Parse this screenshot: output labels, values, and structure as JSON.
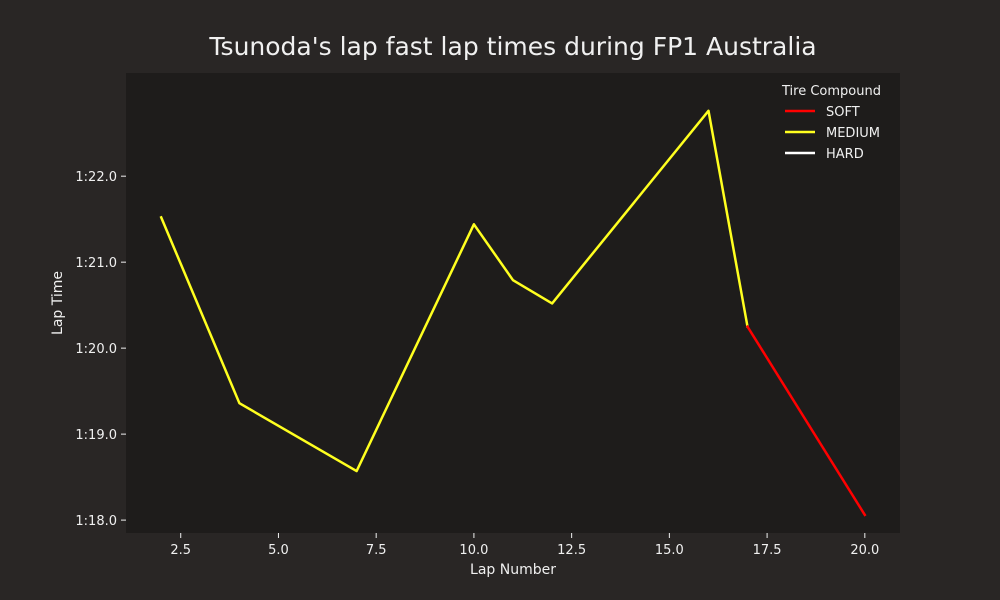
{
  "chart_data": {
    "type": "line",
    "title": "Tsunoda's lap fast lap times during FP1 Australia",
    "xlabel": "Lap Number",
    "ylabel": "Lap Time",
    "xlim": [
      1.1,
      20.9
    ],
    "ylim": [
      77.85,
      83.2
    ],
    "x_ticks": [
      2.5,
      5.0,
      7.5,
      10.0,
      12.5,
      15.0,
      17.5,
      20.0
    ],
    "x_tick_labels": [
      "2.5",
      "5.0",
      "7.5",
      "10.0",
      "12.5",
      "15.0",
      "17.5",
      "20.0"
    ],
    "y_ticks": [
      78,
      79,
      80,
      81,
      82
    ],
    "y_tick_labels": [
      "1:18.0",
      "1:19.0",
      "1:20.0",
      "1:21.0",
      "1:22.0"
    ],
    "grid": false,
    "legend": {
      "title": "Tire Compound",
      "placement": "top-right",
      "entries": [
        {
          "label": "SOFT",
          "color": "#ff0000"
        },
        {
          "label": "MEDIUM",
          "color": "#ffff1f"
        },
        {
          "label": "HARD",
          "color": "#ffffff"
        }
      ]
    },
    "series": [
      {
        "name": "MEDIUM",
        "color": "#ffff1f",
        "x": [
          2,
          4,
          7,
          10,
          11,
          12,
          16,
          17
        ],
        "y": [
          81.52,
          79.36,
          78.57,
          81.44,
          80.79,
          80.52,
          82.76,
          80.25
        ]
      },
      {
        "name": "SOFT",
        "color": "#ff0000",
        "x": [
          17,
          20
        ],
        "y": [
          80.25,
          78.06
        ]
      }
    ]
  }
}
